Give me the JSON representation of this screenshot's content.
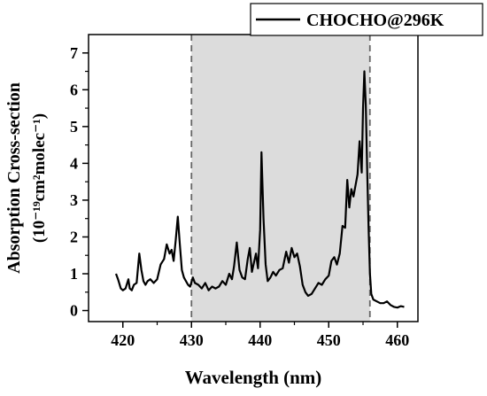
{
  "chart_data": {
    "type": "line",
    "title": "",
    "xlabel": "Wavelength (nm)",
    "ylabel_line1": "Absorption Cross-section",
    "ylabel_line2": "(10⁻¹⁹cm²molec⁻¹)",
    "xlim": [
      415,
      463
    ],
    "ylim": [
      -0.3,
      7.5
    ],
    "x_ticks": [
      420,
      430,
      440,
      450,
      460
    ],
    "y_ticks": [
      0,
      1,
      2,
      3,
      4,
      5,
      6,
      7
    ],
    "grid": false,
    "legend": "top-right",
    "shaded_region": [
      430,
      456
    ],
    "series": [
      {
        "name": "CHOCHO@296K",
        "color": "#000000",
        "x": [
          419.0,
          419.3,
          419.7,
          420.0,
          420.4,
          420.8,
          421.0,
          421.3,
          421.6,
          422.0,
          422.4,
          422.7,
          423.0,
          423.3,
          423.6,
          424.0,
          424.5,
          425.0,
          425.5,
          426.0,
          426.4,
          426.8,
          427.1,
          427.4,
          427.7,
          428.0,
          428.3,
          428.6,
          428.9,
          429.2,
          429.5,
          429.8,
          430.2,
          430.5,
          431.0,
          431.5,
          432.0,
          432.5,
          433.0,
          433.5,
          434.0,
          434.5,
          435.0,
          435.5,
          435.9,
          436.2,
          436.6,
          437.0,
          437.4,
          437.8,
          438.2,
          438.5,
          438.8,
          439.1,
          439.4,
          439.7,
          440.0,
          440.2,
          440.5,
          440.8,
          441.1,
          441.5,
          441.9,
          442.3,
          442.8,
          443.3,
          443.8,
          444.2,
          444.6,
          445.0,
          445.4,
          445.8,
          446.2,
          446.6,
          447.0,
          447.5,
          448.0,
          448.5,
          449.0,
          449.5,
          450.0,
          450.4,
          450.8,
          451.2,
          451.6,
          452.0,
          452.4,
          452.7,
          453.0,
          453.3,
          453.6,
          453.9,
          454.2,
          454.5,
          454.8,
          455.0,
          455.2,
          455.4,
          455.6,
          455.8,
          456.0,
          456.2,
          456.5,
          457.0,
          457.5,
          458.0,
          458.5,
          459.0,
          459.5,
          460.0,
          460.5,
          461.0
        ],
        "y": [
          1.0,
          0.85,
          0.6,
          0.55,
          0.6,
          0.85,
          0.6,
          0.55,
          0.7,
          0.75,
          1.55,
          1.1,
          0.8,
          0.7,
          0.8,
          0.85,
          0.75,
          0.85,
          1.25,
          1.4,
          1.8,
          1.55,
          1.65,
          1.35,
          1.9,
          2.55,
          1.8,
          1.1,
          0.9,
          0.8,
          0.7,
          0.65,
          0.9,
          0.75,
          0.7,
          0.6,
          0.75,
          0.55,
          0.65,
          0.6,
          0.65,
          0.8,
          0.7,
          1.0,
          0.85,
          1.2,
          1.85,
          1.1,
          0.9,
          0.85,
          1.4,
          1.7,
          1.05,
          1.3,
          1.55,
          1.15,
          2.2,
          4.3,
          2.5,
          1.25,
          0.8,
          0.9,
          1.05,
          0.95,
          1.1,
          1.15,
          1.6,
          1.3,
          1.7,
          1.45,
          1.55,
          1.2,
          0.7,
          0.5,
          0.4,
          0.45,
          0.6,
          0.75,
          0.7,
          0.85,
          0.95,
          1.35,
          1.45,
          1.25,
          1.55,
          2.3,
          2.25,
          3.55,
          2.8,
          3.3,
          3.1,
          3.4,
          3.7,
          4.6,
          3.75,
          5.5,
          6.5,
          5.6,
          3.8,
          2.3,
          1.0,
          0.45,
          0.3,
          0.25,
          0.2,
          0.2,
          0.25,
          0.15,
          0.1,
          0.08,
          0.12,
          0.1
        ]
      }
    ]
  },
  "colors": {
    "shade": "#dcdcdc",
    "dash": "#666666",
    "line": "#000000"
  }
}
